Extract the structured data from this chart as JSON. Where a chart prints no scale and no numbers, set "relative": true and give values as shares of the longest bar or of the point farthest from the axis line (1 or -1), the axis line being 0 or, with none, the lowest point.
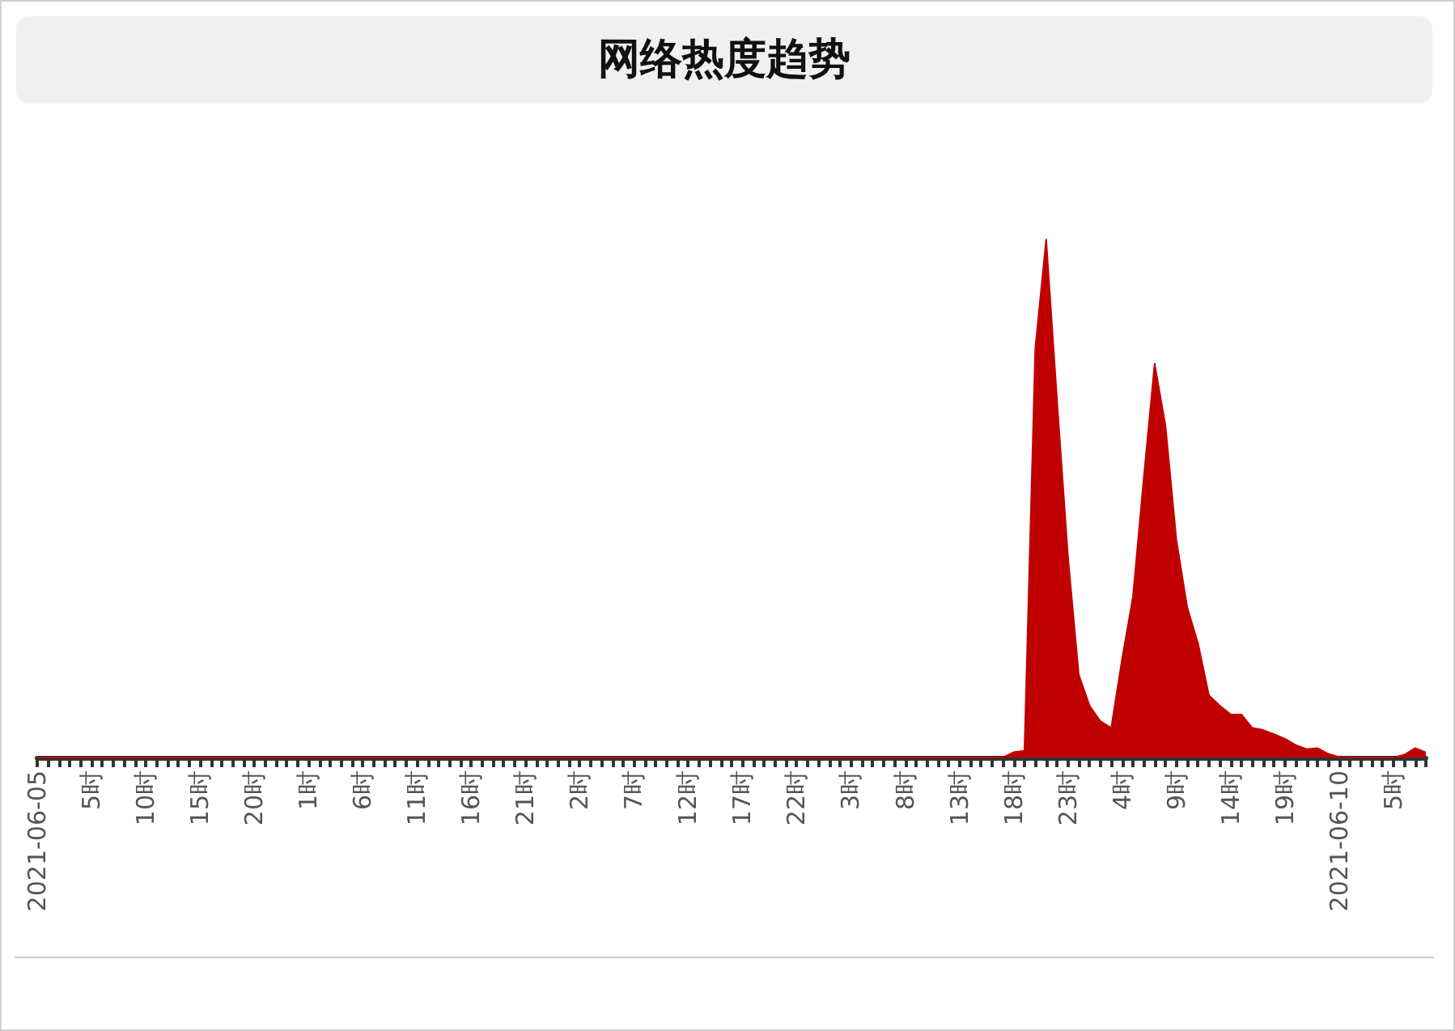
{
  "chart_data": {
    "type": "area",
    "title": "网络热度趋势",
    "relative": true,
    "categories": [
      "2021-06-05",
      null,
      null,
      null,
      null,
      "5时",
      null,
      null,
      null,
      null,
      "10时",
      null,
      null,
      null,
      null,
      "15时",
      null,
      null,
      null,
      null,
      "20时",
      null,
      null,
      null,
      null,
      "1时",
      null,
      null,
      null,
      null,
      "6时",
      null,
      null,
      null,
      null,
      "11时",
      null,
      null,
      null,
      null,
      "16时",
      null,
      null,
      null,
      null,
      "21时",
      null,
      null,
      null,
      null,
      "2时",
      null,
      null,
      null,
      null,
      "7时",
      null,
      null,
      null,
      null,
      "12时",
      null,
      null,
      null,
      null,
      "17时",
      null,
      null,
      null,
      null,
      "22时",
      null,
      null,
      null,
      null,
      "3时",
      null,
      null,
      null,
      null,
      "8时",
      null,
      null,
      null,
      null,
      "13时",
      null,
      null,
      null,
      null,
      "18时",
      null,
      null,
      null,
      null,
      "23时",
      null,
      null,
      null,
      null,
      "4时",
      null,
      null,
      null,
      null,
      "9时",
      null,
      null,
      null,
      null,
      "14时",
      null,
      null,
      null,
      null,
      "19时",
      null,
      null,
      null,
      null,
      "2021-06-10",
      null,
      null,
      null,
      null,
      "5时",
      null,
      null,
      null
    ],
    "series": [
      {
        "color": "#c00000",
        "values": [
          0,
          0,
          0,
          0,
          0,
          0,
          0,
          0,
          0,
          0,
          0,
          0,
          0,
          0,
          0,
          0,
          0,
          0,
          0,
          0,
          0,
          0,
          0,
          0,
          0,
          0,
          0,
          0,
          0,
          0,
          0,
          0,
          0,
          0,
          0,
          0,
          0,
          0,
          0,
          0,
          0,
          0,
          0,
          0,
          0,
          0,
          0,
          0,
          0,
          0,
          0,
          0,
          0,
          0,
          0,
          0,
          0,
          0,
          0,
          0,
          0,
          0,
          0,
          0,
          0,
          0,
          0,
          0,
          0,
          0,
          0,
          0,
          0,
          0,
          0,
          0,
          0,
          0,
          0,
          0,
          0,
          0,
          0,
          0,
          0,
          0,
          0,
          0,
          0,
          0,
          0.01,
          0.013,
          0.79,
          1,
          0.69,
          0.39,
          0.16,
          0.1,
          0.07,
          0.057,
          0.19,
          0.31,
          0.54,
          0.76,
          0.64,
          0.42,
          0.29,
          0.22,
          0.12,
          0.1,
          0.083,
          0.083,
          0.057,
          0.053,
          0.045,
          0.036,
          0.024,
          0.016,
          0.018,
          0.007,
          0.001,
          0,
          0,
          0,
          0,
          0,
          0.005,
          0.018,
          0.01
        ]
      }
    ],
    "marker": "none",
    "grid": false
  }
}
